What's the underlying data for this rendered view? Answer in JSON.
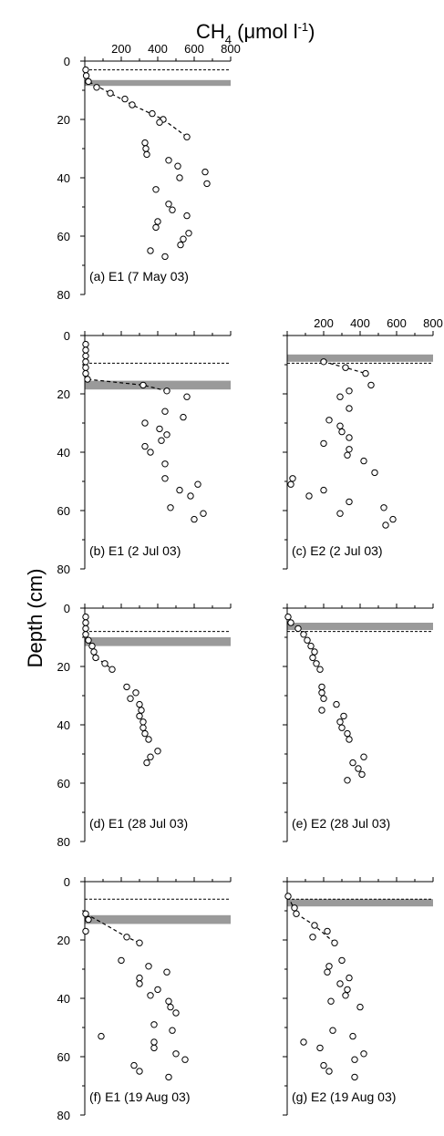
{
  "figure": {
    "title_main": "CH",
    "title_sub": "4",
    "title_unit": " (μmol l",
    "title_sup": "-1",
    "title_close": ")",
    "ylabel": "Depth (cm)"
  },
  "chart_data": [
    {
      "type": "scatter",
      "label": "(a) E1 (7 May 03)",
      "xlim": [
        0,
        800
      ],
      "ylim": [
        0,
        80
      ],
      "xticks": [
        200,
        400,
        600,
        800
      ],
      "yticks": [
        0,
        20,
        40,
        60,
        80
      ],
      "water_table_depth": 3,
      "band_depth": [
        6.5,
        8.5
      ],
      "points": [
        [
          5,
          3
        ],
        [
          8,
          5
        ],
        [
          20,
          7
        ],
        [
          65,
          9
        ],
        [
          140,
          11
        ],
        [
          220,
          13
        ],
        [
          260,
          15
        ],
        [
          370,
          18
        ],
        [
          430,
          20
        ],
        [
          410,
          21
        ],
        [
          560,
          26
        ],
        [
          330,
          28
        ],
        [
          335,
          30
        ],
        [
          340,
          32
        ],
        [
          460,
          34
        ],
        [
          510,
          36
        ],
        [
          660,
          38
        ],
        [
          520,
          40
        ],
        [
          670,
          42
        ],
        [
          390,
          44
        ],
        [
          460,
          49
        ],
        [
          480,
          51
        ],
        [
          560,
          53
        ],
        [
          400,
          55
        ],
        [
          390,
          57
        ],
        [
          570,
          59
        ],
        [
          540,
          61
        ],
        [
          525,
          63
        ],
        [
          360,
          65
        ],
        [
          440,
          67
        ]
      ],
      "fit_line": [
        [
          5,
          3
        ],
        [
          20,
          7
        ],
        [
          140,
          11
        ],
        [
          260,
          15
        ],
        [
          430,
          20
        ],
        [
          560,
          26
        ]
      ]
    },
    {
      "type": "scatter",
      "label": "(b) E1 (2 Jul 03)",
      "xlim": [
        0,
        800
      ],
      "ylim": [
        0,
        80
      ],
      "xticks": [
        200,
        400,
        600,
        800
      ],
      "yticks": [
        0,
        20,
        40,
        60,
        80
      ],
      "water_table_depth": 9.5,
      "band_depth": [
        15.5,
        18.5
      ],
      "points": [
        [
          5,
          3
        ],
        [
          5,
          5
        ],
        [
          5,
          7
        ],
        [
          5,
          9
        ],
        [
          5,
          11
        ],
        [
          5,
          13
        ],
        [
          15,
          15
        ],
        [
          320,
          17
        ],
        [
          450,
          19
        ],
        [
          560,
          21
        ],
        [
          440,
          26
        ],
        [
          540,
          28
        ],
        [
          330,
          30
        ],
        [
          410,
          32
        ],
        [
          450,
          34
        ],
        [
          420,
          36
        ],
        [
          330,
          38
        ],
        [
          360,
          40
        ],
        [
          440,
          44
        ],
        [
          440,
          49
        ],
        [
          620,
          51
        ],
        [
          520,
          53
        ],
        [
          580,
          55
        ],
        [
          470,
          59
        ],
        [
          650,
          61
        ],
        [
          600,
          63
        ]
      ],
      "fit_line": [
        [
          5,
          13
        ],
        [
          15,
          15
        ],
        [
          320,
          17
        ],
        [
          450,
          19
        ]
      ]
    },
    {
      "type": "scatter",
      "label": "(c) E2 (2 Jul 03)",
      "xlim": [
        0,
        800
      ],
      "ylim": [
        0,
        80
      ],
      "xticks": [
        200,
        400,
        600,
        800
      ],
      "yticks": [
        0,
        20,
        40,
        60,
        80
      ],
      "water_table_depth": 9.5,
      "band_depth": [
        6.5,
        9
      ],
      "points": [
        [
          200,
          9
        ],
        [
          320,
          11
        ],
        [
          430,
          13
        ],
        [
          460,
          17
        ],
        [
          340,
          19
        ],
        [
          290,
          21
        ],
        [
          340,
          25
        ],
        [
          230,
          29
        ],
        [
          290,
          31
        ],
        [
          300,
          33
        ],
        [
          340,
          35
        ],
        [
          200,
          37
        ],
        [
          340,
          39
        ],
        [
          330,
          41
        ],
        [
          420,
          43
        ],
        [
          480,
          47
        ],
        [
          30,
          49
        ],
        [
          20,
          51
        ],
        [
          200,
          53
        ],
        [
          120,
          55
        ],
        [
          340,
          57
        ],
        [
          530,
          59
        ],
        [
          290,
          61
        ],
        [
          580,
          63
        ],
        [
          540,
          65
        ]
      ],
      "fit_line": [
        [
          200,
          9
        ],
        [
          320,
          11
        ],
        [
          430,
          13
        ]
      ]
    },
    {
      "type": "scatter",
      "label": "(d) E1 (28 Jul 03)",
      "xlim": [
        0,
        800
      ],
      "ylim": [
        0,
        80
      ],
      "xticks": [
        200,
        400,
        600,
        800
      ],
      "yticks": [
        0,
        20,
        40,
        60,
        80
      ],
      "water_table_depth": 8,
      "band_depth": [
        10,
        13
      ],
      "points": [
        [
          5,
          3
        ],
        [
          5,
          5
        ],
        [
          5,
          7
        ],
        [
          5,
          9
        ],
        [
          20,
          11
        ],
        [
          40,
          13
        ],
        [
          50,
          15
        ],
        [
          60,
          17
        ],
        [
          110,
          19
        ],
        [
          150,
          21
        ],
        [
          230,
          27
        ],
        [
          280,
          29
        ],
        [
          250,
          31
        ],
        [
          300,
          33
        ],
        [
          310,
          35
        ],
        [
          300,
          37
        ],
        [
          320,
          39
        ],
        [
          320,
          41
        ],
        [
          330,
          43
        ],
        [
          350,
          45
        ],
        [
          400,
          49
        ],
        [
          360,
          51
        ],
        [
          340,
          53
        ]
      ],
      "fit_line": [
        [
          5,
          9
        ],
        [
          20,
          11
        ],
        [
          40,
          13
        ],
        [
          60,
          17
        ],
        [
          110,
          19
        ],
        [
          150,
          21
        ]
      ]
    },
    {
      "type": "scatter",
      "label": "(e) E2 (28 Jul 03)",
      "xlim": [
        0,
        800
      ],
      "ylim": [
        0,
        80
      ],
      "xticks": [
        200,
        400,
        600,
        800
      ],
      "yticks": [
        0,
        20,
        40,
        60,
        80
      ],
      "water_table_depth": 8,
      "band_depth": [
        5,
        7.5
      ],
      "points": [
        [
          5,
          3
        ],
        [
          20,
          5
        ],
        [
          60,
          7
        ],
        [
          90,
          9
        ],
        [
          110,
          11
        ],
        [
          130,
          13
        ],
        [
          150,
          15
        ],
        [
          140,
          17
        ],
        [
          160,
          19
        ],
        [
          180,
          21
        ],
        [
          190,
          27
        ],
        [
          190,
          29
        ],
        [
          200,
          31
        ],
        [
          190,
          35
        ],
        [
          270,
          33
        ],
        [
          310,
          37
        ],
        [
          290,
          39
        ],
        [
          300,
          41
        ],
        [
          330,
          43
        ],
        [
          340,
          45
        ],
        [
          360,
          53
        ],
        [
          420,
          51
        ],
        [
          390,
          55
        ],
        [
          410,
          57
        ],
        [
          330,
          59
        ]
      ],
      "fit_line": [
        [
          5,
          3
        ],
        [
          20,
          5
        ],
        [
          60,
          7
        ]
      ]
    },
    {
      "type": "scatter",
      "label": "(f) E1 (19 Aug 03)",
      "xlim": [
        0,
        800
      ],
      "ylim": [
        0,
        80
      ],
      "xticks": [
        200,
        400,
        600,
        800
      ],
      "yticks": [
        0,
        20,
        40,
        60,
        80
      ],
      "water_table_depth": 6,
      "band_depth": [
        11.5,
        14.5
      ],
      "points": [
        [
          5,
          11
        ],
        [
          20,
          13
        ],
        [
          5,
          17
        ],
        [
          230,
          19
        ],
        [
          300,
          21
        ],
        [
          200,
          27
        ],
        [
          350,
          29
        ],
        [
          300,
          33
        ],
        [
          300,
          35
        ],
        [
          450,
          31
        ],
        [
          400,
          37
        ],
        [
          360,
          39
        ],
        [
          460,
          41
        ],
        [
          470,
          43
        ],
        [
          500,
          45
        ],
        [
          380,
          49
        ],
        [
          480,
          51
        ],
        [
          90,
          53
        ],
        [
          380,
          55
        ],
        [
          380,
          57
        ],
        [
          500,
          59
        ],
        [
          550,
          61
        ],
        [
          270,
          63
        ],
        [
          300,
          65
        ],
        [
          460,
          67
        ]
      ],
      "fit_line": [
        [
          5,
          11
        ],
        [
          120,
          15
        ],
        [
          230,
          19
        ],
        [
          300,
          21
        ]
      ]
    },
    {
      "type": "scatter",
      "label": "(g) E2 (19 Aug 03)",
      "xlim": [
        0,
        800
      ],
      "ylim": [
        0,
        80
      ],
      "xticks": [
        200,
        400,
        600,
        800
      ],
      "yticks": [
        0,
        20,
        40,
        60,
        80
      ],
      "water_table_depth": 6,
      "band_depth": [
        6,
        8.5
      ],
      "points": [
        [
          5,
          5
        ],
        [
          40,
          9
        ],
        [
          50,
          11
        ],
        [
          150,
          15
        ],
        [
          140,
          19
        ],
        [
          220,
          17
        ],
        [
          260,
          21
        ],
        [
          300,
          27
        ],
        [
          230,
          29
        ],
        [
          220,
          31
        ],
        [
          340,
          33
        ],
        [
          290,
          35
        ],
        [
          330,
          37
        ],
        [
          320,
          39
        ],
        [
          400,
          43
        ],
        [
          240,
          41
        ],
        [
          250,
          51
        ],
        [
          90,
          55
        ],
        [
          180,
          57
        ],
        [
          360,
          53
        ],
        [
          420,
          59
        ],
        [
          370,
          61
        ],
        [
          200,
          63
        ],
        [
          230,
          65
        ],
        [
          370,
          67
        ]
      ],
      "fit_line": [
        [
          5,
          5
        ],
        [
          50,
          11
        ],
        [
          150,
          15
        ],
        [
          260,
          21
        ]
      ]
    }
  ]
}
